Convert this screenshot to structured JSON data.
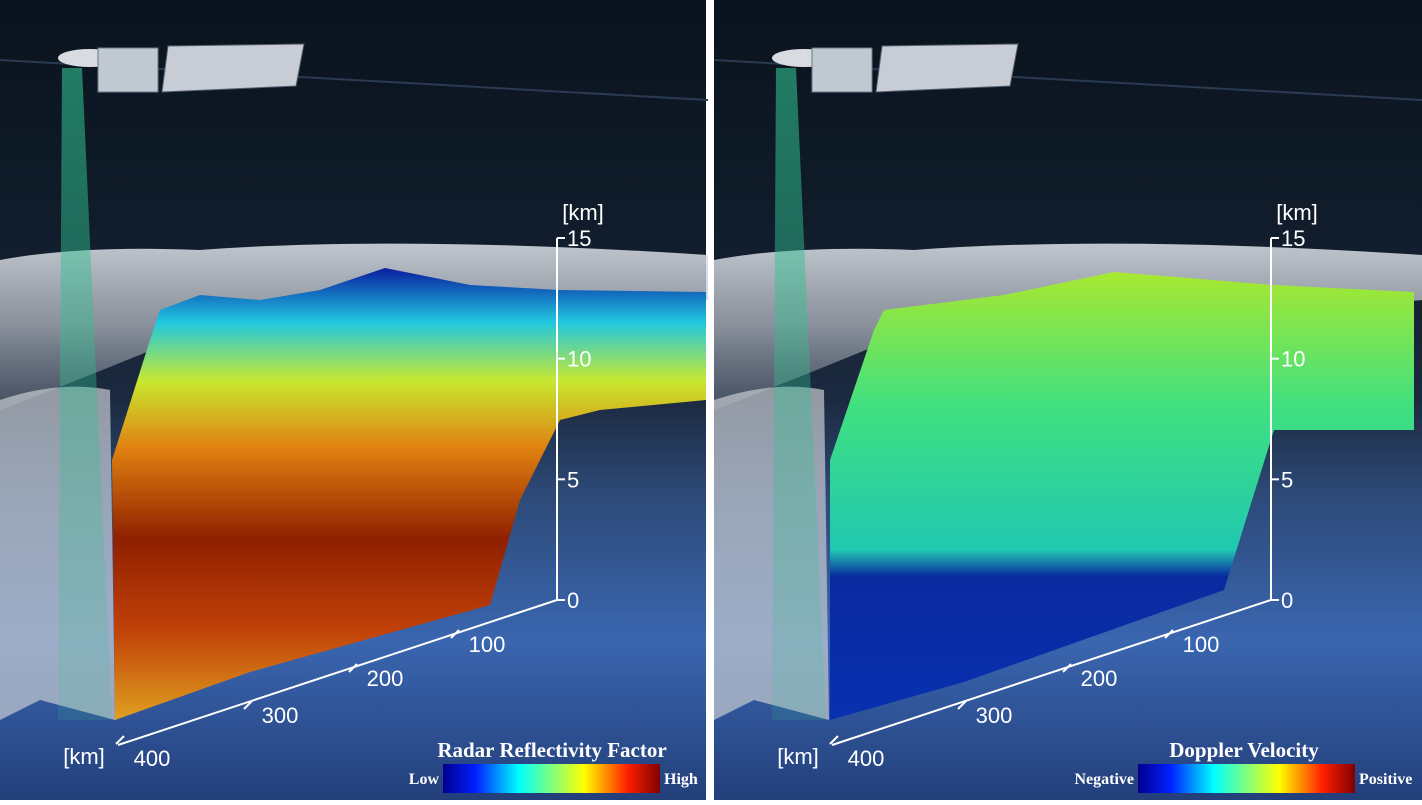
{
  "panels": [
    {
      "unit_top": "[km]",
      "unit_bottom": "[km]",
      "height_ticks": [
        "15",
        "10",
        "5",
        "0"
      ],
      "distance_ticks": [
        "100",
        "200",
        "300",
        "400"
      ],
      "legend": {
        "title": "Radar Reflectivity Factor",
        "low": "Low",
        "high": "High"
      }
    },
    {
      "unit_top": "[km]",
      "unit_bottom": "[km]",
      "height_ticks": [
        "15",
        "10",
        "5",
        "0"
      ],
      "distance_ticks": [
        "100",
        "200",
        "300",
        "400"
      ],
      "legend": {
        "title": "Doppler Velocity",
        "low": "Negative",
        "high": "Positive"
      }
    }
  ]
}
